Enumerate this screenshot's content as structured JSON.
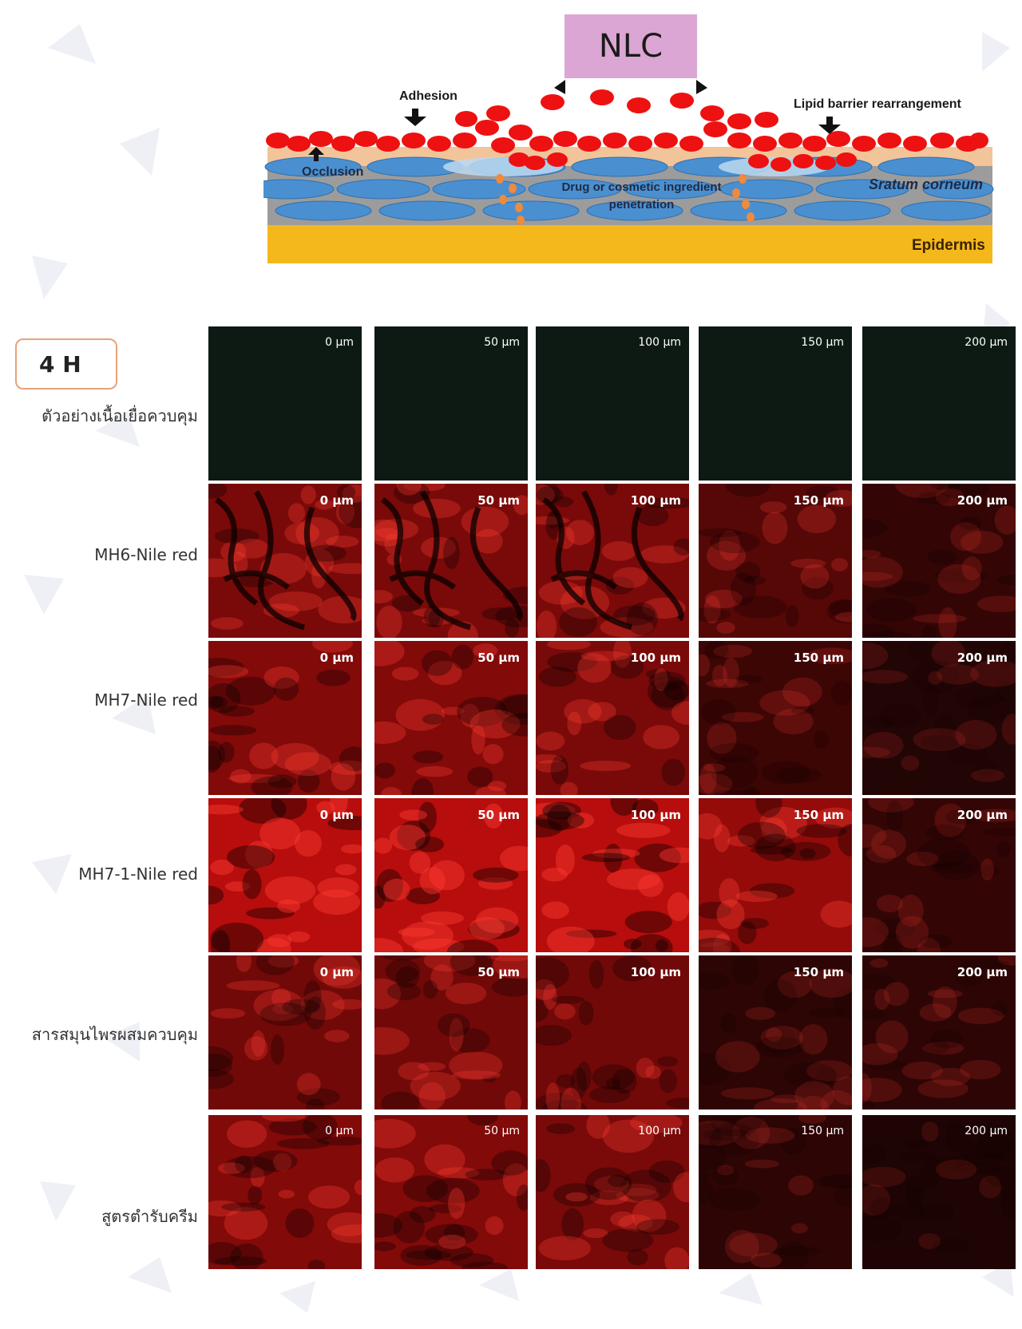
{
  "diagram": {
    "nlc_label": "NLC",
    "adhesion": "Adhesion",
    "lipid_barrier": "Lipid barrier rearrangement",
    "occlusion": "Occlusion",
    "penetration": "Drug or cosmetic ingredient penetration",
    "stratum": "Sratum corneum",
    "epidermis": "Epidermis",
    "colors": {
      "nlc_box": "#dba6d3",
      "particle": "#ee1111",
      "corneocyte": "#4a90d0",
      "lipid": "#9c9c9c",
      "epidermis": "#f4b81c"
    }
  },
  "time_label": "4 H",
  "depths": [
    "0 µm",
    "50 µm",
    "100 µm",
    "150 µm",
    "200 µm"
  ],
  "rows": [
    {
      "label": "ตัวอย่างเนื้อเยื่อควบคุม",
      "levels": [
        0,
        0,
        0,
        0,
        0
      ]
    },
    {
      "label": "MH6-Nile red",
      "levels": [
        0.55,
        0.55,
        0.55,
        0.35,
        0.15
      ]
    },
    {
      "label": "MH7-Nile red",
      "levels": [
        0.6,
        0.6,
        0.55,
        0.2,
        0.05
      ]
    },
    {
      "label": "MH7-1-Nile red",
      "levels": [
        0.9,
        0.9,
        0.9,
        0.7,
        0.15
      ]
    },
    {
      "label": "สารสมุนไพรผสมควบคุม",
      "levels": [
        0.5,
        0.5,
        0.5,
        0.12,
        0.12
      ]
    },
    {
      "label": "สูตรตำรับครีม",
      "levels": [
        0.6,
        0.6,
        0.55,
        0.12,
        0.03
      ]
    }
  ]
}
